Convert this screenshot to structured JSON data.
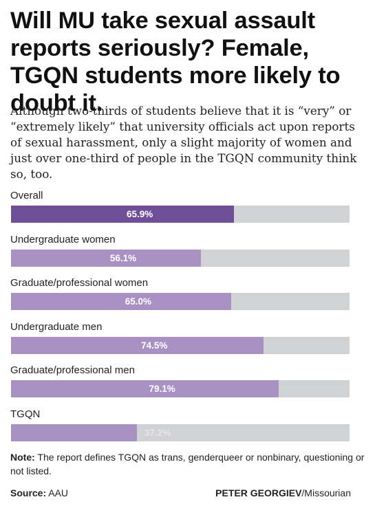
{
  "headline": "Will MU take sexual assault reports seriously? Female, TGQN students more likely to doubt it.",
  "dek": "Although two-thirds of students believe that it is “very” or “extremely likely” that university officials act upon reports of sexual harassment, only a slight majority of women and just over one-third of people in the TGQN community think so, too.",
  "colors": {
    "highlight": "#6e4e97",
    "bar": "#a991c4",
    "track": "#d1d2d4",
    "value_text_light": "#ffffff",
    "value_text_muted": "#e8e4ee"
  },
  "chart_data": {
    "type": "bar",
    "orientation": "horizontal",
    "categories": [
      "Overall",
      "Undergraduate women",
      "Graduate/professional women",
      "Undergraduate men",
      "Graduate/professional men",
      "TGQN"
    ],
    "values": [
      65.9,
      56.1,
      65.0,
      74.5,
      79.1,
      37.2
    ],
    "value_labels": [
      "65.9%",
      "56.1%",
      "65.0%",
      "74.5%",
      "79.1%",
      "37.2%"
    ],
    "highlight_index": 0,
    "xlim": [
      0,
      100
    ],
    "title": "",
    "xlabel": "",
    "ylabel": "",
    "grid": false
  },
  "note": {
    "label": "Note:",
    "text": " The report defines TGQN as trans, genderqueer or nonbinary, questioning or not listed."
  },
  "source": {
    "label": "Source:",
    "text": " AAU"
  },
  "credit": {
    "name": "PETER GEORGIEV",
    "org": "/Missourian"
  }
}
